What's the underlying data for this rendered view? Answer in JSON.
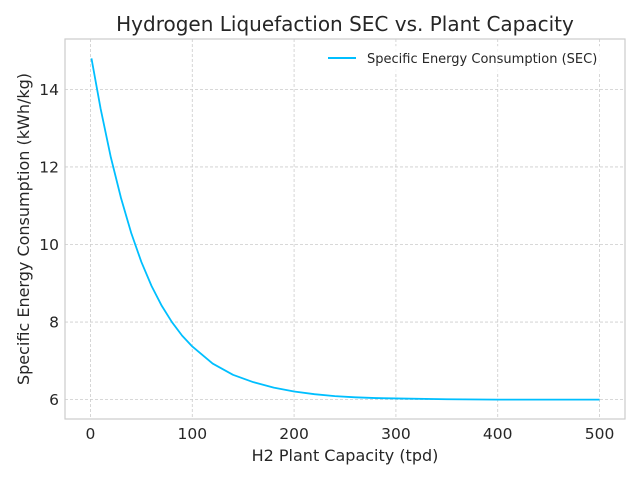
{
  "chart_data": {
    "type": "line",
    "title": "Hydrogen Liquefaction SEC vs. Plant Capacity",
    "xlabel": "H2 Plant Capacity (tpd)",
    "ylabel": "Specific Energy Consumption (kWh/kg)",
    "xlim": [
      -25,
      525
    ],
    "ylim": [
      5.5,
      15.3
    ],
    "xticks": [
      0,
      100,
      200,
      300,
      400,
      500
    ],
    "yticks": [
      6,
      8,
      10,
      12,
      14
    ],
    "grid": true,
    "legend_position": "top-right",
    "series": [
      {
        "name": "Specific Energy Consumption (SEC)",
        "color": "#00bfff",
        "x": [
          1,
          10,
          20,
          30,
          40,
          50,
          60,
          70,
          80,
          90,
          100,
          120,
          140,
          160,
          180,
          200,
          220,
          240,
          260,
          280,
          300,
          350,
          400,
          450,
          500
        ],
        "y": [
          14.8,
          13.5,
          12.25,
          11.2,
          10.3,
          9.55,
          8.93,
          8.42,
          8.0,
          7.65,
          7.37,
          6.93,
          6.64,
          6.45,
          6.31,
          6.21,
          6.14,
          6.09,
          6.06,
          6.04,
          6.03,
          6.01,
          6.0,
          6.0,
          6.0
        ]
      }
    ]
  }
}
